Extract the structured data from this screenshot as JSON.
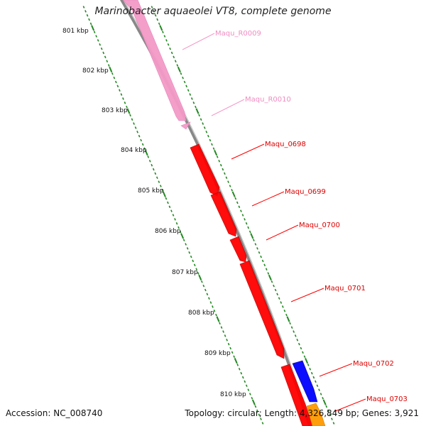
{
  "title": "Marinobacter aquaeolei VT8, complete genome",
  "footer": {
    "accession": "Accession: NC_008740",
    "stats": "Topology: circular; Length: 4,326,849 bp; Genes: 3,921"
  },
  "colors": {
    "rna": "#f49ac8",
    "cds": "#ff0000",
    "cds_reverse": "#0000ff",
    "other": "#ff9900",
    "backbone": "#888888",
    "ticks": "#228822"
  },
  "ruler": [
    "801 kbp",
    "802 kbp",
    "803 kbp",
    "804 kbp",
    "805 kbp",
    "806 kbp",
    "807 kbp",
    "808 kbp",
    "809 kbp",
    "810 kbp"
  ],
  "genes": [
    {
      "name": "Maqu_R0009",
      "type": "rna"
    },
    {
      "name": "Maqu_R0010",
      "type": "rna"
    },
    {
      "name": "Maqu_0698",
      "type": "cds"
    },
    {
      "name": "Maqu_0699",
      "type": "cds"
    },
    {
      "name": "Maqu_0700",
      "type": "cds"
    },
    {
      "name": "Maqu_0701",
      "type": "cds"
    },
    {
      "name": "Maqu_0702",
      "type": "cds_reverse"
    },
    {
      "name": "Maqu_0703",
      "type": "other"
    }
  ]
}
